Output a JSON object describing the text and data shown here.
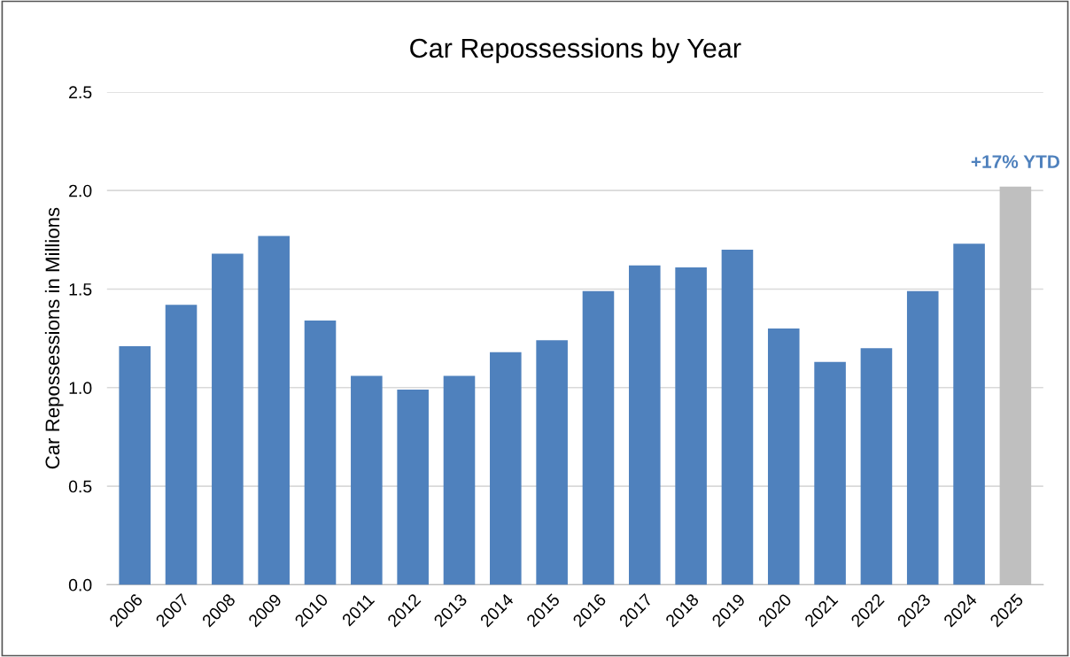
{
  "chart_data": {
    "type": "bar",
    "title": "Car Repossessions by Year",
    "ylabel": "Car Repossessions in Millions",
    "categories": [
      "2006",
      "2007",
      "2008",
      "2009",
      "2010",
      "2011",
      "2012",
      "2013",
      "2014",
      "2015",
      "2016",
      "2017",
      "2018",
      "2019",
      "2020",
      "2021",
      "2022",
      "2023",
      "2024",
      "2025"
    ],
    "values": [
      1.21,
      1.42,
      1.68,
      1.77,
      1.34,
      1.06,
      0.99,
      1.06,
      1.18,
      1.24,
      1.49,
      1.62,
      1.61,
      1.7,
      1.3,
      1.13,
      1.2,
      1.49,
      1.73,
      2.02
    ],
    "colors": [
      "#4f81bd",
      "#4f81bd",
      "#4f81bd",
      "#4f81bd",
      "#4f81bd",
      "#4f81bd",
      "#4f81bd",
      "#4f81bd",
      "#4f81bd",
      "#4f81bd",
      "#4f81bd",
      "#4f81bd",
      "#4f81bd",
      "#4f81bd",
      "#4f81bd",
      "#4f81bd",
      "#4f81bd",
      "#4f81bd",
      "#4f81bd",
      "#bfbfbf"
    ],
    "ylim": [
      0,
      2.5
    ],
    "yticks": [
      {
        "value": 0,
        "label": "0.0"
      },
      {
        "value": 0.5,
        "label": "0.5"
      },
      {
        "value": 1,
        "label": "1.0"
      },
      {
        "value": 1.5,
        "label": "1.5"
      },
      {
        "value": 2,
        "label": "2.0"
      },
      {
        "value": 2.5,
        "label": "2.5"
      }
    ],
    "grid": "y",
    "annotations": [
      {
        "text": "+17% YTD",
        "x": "2025",
        "y": 2.02
      }
    ]
  }
}
